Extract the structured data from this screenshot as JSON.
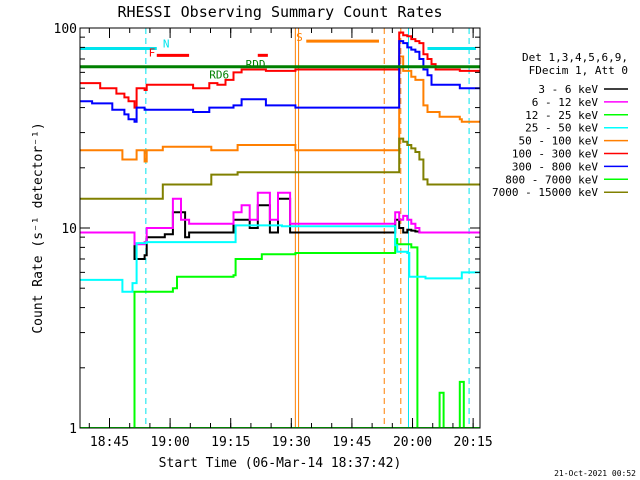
{
  "chart_data": {
    "type": "line",
    "title": "RHESSI Observing Summary Count Rates",
    "xlabel": "Start Time (06-Mar-14 18:37:42)",
    "ylabel": "Count Rate (s⁻¹ detector⁻¹)",
    "yscale": "log",
    "ylim": [
      1,
      100
    ],
    "xlim_minutes": [
      0,
      99
    ],
    "x_unit": "minutes after 18:37:42",
    "y_ticks": [
      {
        "value": 1,
        "label": "1"
      },
      {
        "value": 10,
        "label": "10"
      },
      {
        "value": 100,
        "label": "100"
      }
    ],
    "x_ticks": [
      {
        "value": 7.3,
        "label": "18:45"
      },
      {
        "value": 22.3,
        "label": "19:00"
      },
      {
        "value": 37.3,
        "label": "19:15"
      },
      {
        "value": 52.3,
        "label": "19:30"
      },
      {
        "value": 67.3,
        "label": "19:45"
      },
      {
        "value": 82.3,
        "label": "20:00"
      },
      {
        "value": 97.3,
        "label": "20:15"
      }
    ],
    "legend_header": [
      "Det 1,3,4,5,6,9,",
      "FDecim 1, Att 0"
    ],
    "legend_position": "right",
    "annotations": [
      {
        "label": "N",
        "color": "#00e5ee",
        "x": 20.5,
        "y": 80
      },
      {
        "label": "F",
        "color": "#ff0000",
        "x": 17.0,
        "y": 72
      },
      {
        "label": "RD6",
        "color": "#008000",
        "x": 32.0,
        "y": 56
      },
      {
        "label": "RDD",
        "color": "#008000",
        "x": 41.0,
        "y": 63
      },
      {
        "label": "S",
        "color": "#ff7f00",
        "x": 53.5,
        "y": 86
      }
    ],
    "flag_bars": [
      {
        "name": "N",
        "color": "#00e5ee",
        "x": [
          0,
          19
        ],
        "y": 79
      },
      {
        "name": "N",
        "color": "#00e5ee",
        "x": [
          86,
          98
        ],
        "y": 79
      },
      {
        "name": "F",
        "color": "#ff0000",
        "x": [
          19,
          27
        ],
        "y": 73
      },
      {
        "name": "F",
        "color": "#ff0000",
        "x": [
          44,
          46.5
        ],
        "y": 73
      },
      {
        "name": "S",
        "color": "#ff7f00",
        "x": [
          56,
          74
        ],
        "y": 86
      },
      {
        "name": "RD",
        "color": "#008000",
        "x": [
          0,
          99
        ],
        "y": 64
      }
    ],
    "vlines": [
      {
        "x": 16.3,
        "color": "#00e5ee",
        "style": "dashed"
      },
      {
        "x": 53.3,
        "color": "#ff7f00",
        "style": "solid"
      },
      {
        "x": 54.1,
        "color": "#ff7f00",
        "style": "solid"
      },
      {
        "x": 75.3,
        "color": "#ff7f00",
        "style": "dashed"
      },
      {
        "x": 79.4,
        "color": "#ff7f00",
        "style": "dashed"
      },
      {
        "x": 81.3,
        "color": "#00e5ee",
        "style": "solid"
      },
      {
        "x": 96.3,
        "color": "#00e5ee",
        "style": "dashed"
      }
    ],
    "series": [
      {
        "name": "3 - 6 keV",
        "color": "#000000",
        "x": [
          0,
          13,
          13.5,
          16,
          16.5,
          21,
          23,
          26,
          27,
          32,
          38,
          42,
          44,
          47,
          49,
          52,
          53.3,
          78,
          79,
          80,
          81,
          82,
          83,
          84
        ],
        "y": [
          9.5,
          9.5,
          7,
          7.3,
          9,
          9.3,
          12,
          9,
          9.5,
          9.5,
          11,
          10,
          13,
          9.5,
          14,
          9.5,
          9.5,
          11,
          10,
          9.5,
          9.8,
          9.7,
          9.6,
          9.5
        ]
      },
      {
        "name": "6 - 12 keV",
        "color": "#ff00ff",
        "x": [
          0,
          13,
          13.5,
          16,
          16.5,
          21,
          23,
          25,
          27,
          32,
          38,
          40,
          42,
          44,
          47,
          49,
          52,
          53.3,
          78,
          79,
          80,
          81,
          82,
          83,
          84
        ],
        "y": [
          9.5,
          9.5,
          8.3,
          8.5,
          10,
          10,
          14,
          11,
          10.5,
          10.5,
          12,
          13,
          11,
          15,
          11,
          15,
          10.5,
          10.5,
          12,
          11,
          11.5,
          11,
          10.5,
          10,
          9.5
        ]
      },
      {
        "name": "12 - 25 keV",
        "color": "#00ff00",
        "x": [
          0,
          13,
          13.5,
          23,
          24,
          38,
          38.5,
          45,
          53.3,
          78,
          78.5,
          82,
          83.5,
          88,
          89,
          90,
          93,
          94,
          95,
          99
        ],
        "y": [
          1,
          1,
          4.8,
          5,
          5.7,
          5.8,
          7,
          7.4,
          7.5,
          8.8,
          8.3,
          8,
          1,
          1,
          1.5,
          1,
          1,
          1.7,
          1,
          1
        ]
      },
      {
        "name": "25 - 50 keV",
        "color": "#00ffff",
        "x": [
          0,
          10,
          10.5,
          13,
          14,
          16,
          16.5,
          38,
          38.5,
          50,
          53.3,
          78,
          78.5,
          81,
          81.5,
          85,
          85.5,
          94,
          94.5,
          99
        ],
        "y": [
          5.5,
          5.5,
          4.8,
          5.3,
          8.4,
          8.4,
          8.5,
          8.5,
          10.3,
          10.2,
          10.2,
          8.2,
          7.6,
          7.5,
          5.7,
          5.7,
          5.6,
          5.6,
          6,
          6
        ]
      },
      {
        "name": "50 - 100 keV",
        "color": "#ff7f00",
        "x": [
          0,
          10,
          10.5,
          13,
          14,
          16,
          16.5,
          20,
          20.5,
          32,
          32.5,
          38,
          39,
          53.3,
          79,
          80,
          82,
          83,
          85,
          86,
          88,
          89,
          94,
          94.5,
          99
        ],
        "y": [
          24.5,
          24.5,
          22,
          22,
          24.5,
          21.5,
          24.5,
          24.5,
          25.5,
          25.5,
          24.5,
          24.5,
          26,
          24.5,
          72,
          61,
          57,
          55,
          41,
          38,
          38,
          36,
          35,
          34,
          34
        ]
      },
      {
        "name": "100 - 300 keV",
        "color": "#ff0000",
        "x": [
          0,
          5,
          9,
          11,
          12,
          13.5,
          14,
          16,
          16.5,
          22,
          28,
          32,
          34,
          36,
          38,
          40,
          46,
          53.3,
          79,
          80,
          81,
          82,
          83,
          84,
          85,
          86,
          87,
          88,
          94,
          99
        ],
        "y": [
          53,
          50,
          47,
          45,
          43,
          40,
          50,
          49,
          52,
          52,
          50,
          53,
          52,
          55,
          60,
          62,
          61,
          62,
          95,
          92,
          91,
          88,
          86,
          84,
          74,
          70,
          66,
          62,
          61,
          61
        ]
      },
      {
        "name": "300 - 800 keV",
        "color": "#0000ff",
        "x": [
          0,
          3,
          8,
          11,
          12,
          13.5,
          14,
          16,
          16.5,
          22,
          28,
          32,
          34,
          38,
          40,
          46,
          53.3,
          79,
          80,
          81,
          82,
          83,
          84,
          85,
          86,
          87,
          94,
          99
        ],
        "y": [
          43,
          42,
          39,
          37,
          35,
          34,
          40,
          39,
          39,
          39,
          38,
          40,
          40,
          41,
          44,
          41,
          40,
          86,
          84,
          80,
          78,
          76,
          70,
          62,
          58,
          52,
          50,
          50
        ]
      },
      {
        "name": "800 - 7000 keV",
        "color": "#00ff00",
        "x": [
          0,
          99
        ],
        "y": [
          1,
          1
        ]
      },
      {
        "name": "7000 - 15000 keV",
        "color": "#808000",
        "x": [
          0,
          20,
          20.5,
          32,
          32.5,
          38,
          39,
          53.3,
          79,
          80,
          81,
          82,
          83,
          84,
          85,
          86,
          87,
          99
        ],
        "y": [
          14,
          14,
          16.5,
          16.5,
          18.5,
          18.5,
          19,
          19,
          28,
          27,
          26,
          25,
          24,
          22,
          17.5,
          16.5,
          16.5,
          16.5
        ]
      }
    ]
  },
  "timestamp": "21-Oct-2021 00:52"
}
